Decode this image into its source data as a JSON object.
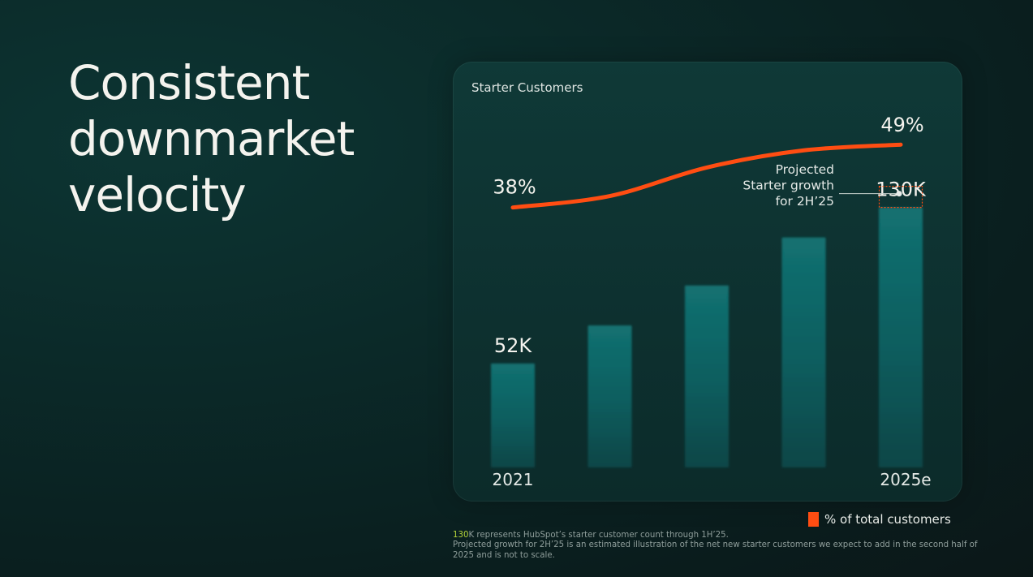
{
  "headline": {
    "lines": [
      "Consistent",
      "downmarket",
      "velocity"
    ]
  },
  "colors": {
    "bar": "#0f5f60",
    "bar_top": "#116b6b",
    "line": "#ff4d12",
    "text": "#f2f2ec",
    "accent": "#b4d33a"
  },
  "chart_data": {
    "type": "bar",
    "title": "Starter Customers",
    "categories": [
      "2021",
      "",
      "",
      "",
      "2025e"
    ],
    "values": [
      52,
      71,
      91,
      115,
      130
    ],
    "value_unit": "K",
    "bar_labels": [
      "52K",
      "",
      "",
      "",
      "130K"
    ],
    "ylim": [
      0,
      140
    ],
    "line_series": {
      "name": "% of total customers",
      "values": [
        38,
        40,
        45,
        48,
        49
      ],
      "labels": [
        "38%",
        "",
        "",
        "",
        "49%"
      ]
    },
    "annotation": {
      "lines": [
        "Projected",
        "Starter growth",
        "for 2H’25"
      ]
    },
    "legend": {
      "label": "% of total customers",
      "position": "bottom-right"
    }
  },
  "footnote": {
    "accent_part": "130",
    "line1_rest": "K represents HubSpot’s starter customer count through 1H’25.",
    "line2": "Projected growth for 2H’25 is an estimated illustration of the net new starter customers we expect to add in the second half of 2025 and is not to scale."
  }
}
